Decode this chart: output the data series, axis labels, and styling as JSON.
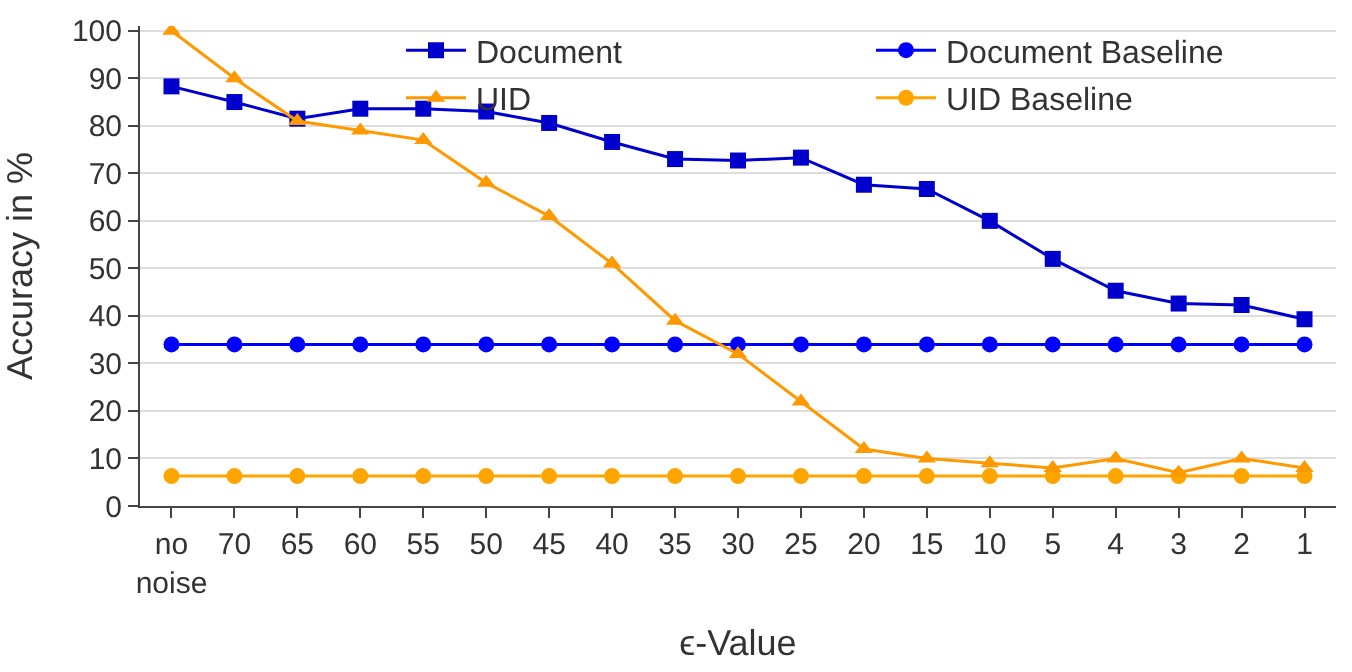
{
  "chart_data": {
    "type": "line",
    "xlabel": "ϵ-Value",
    "ylabel": "Accuracy in %",
    "categories": [
      "no\nnoise",
      "70",
      "65",
      "60",
      "55",
      "50",
      "45",
      "40",
      "35",
      "30",
      "25",
      "20",
      "15",
      "10",
      "5",
      "4",
      "3",
      "2",
      "1"
    ],
    "series": [
      {
        "name": "Document",
        "color": "#0000cc",
        "marker": "square",
        "values": [
          88.3,
          85,
          81.5,
          83.6,
          83.6,
          83,
          80.6,
          76.6,
          73,
          72.7,
          73.3,
          67.6,
          66.7,
          60,
          52,
          45.3,
          42.6,
          42.3,
          39.3
        ]
      },
      {
        "name": "Document Baseline",
        "color": "#0000ff",
        "marker": "circle",
        "values": [
          34,
          34,
          34,
          34,
          34,
          34,
          34,
          34,
          34,
          34,
          34,
          34,
          34,
          34,
          34,
          34,
          34,
          34,
          34
        ]
      },
      {
        "name": "UID",
        "color": "#ff9900",
        "marker": "triangle",
        "values": [
          100,
          90,
          81,
          79,
          77,
          68,
          61,
          51,
          39,
          32,
          22,
          12,
          10,
          9,
          8,
          10,
          7,
          10,
          8
        ]
      },
      {
        "name": "UID Baseline",
        "color": "#ffa500",
        "marker": "circle",
        "values": [
          6.3,
          6.3,
          6.3,
          6.3,
          6.3,
          6.3,
          6.3,
          6.3,
          6.3,
          6.3,
          6.3,
          6.3,
          6.3,
          6.3,
          6.3,
          6.3,
          6.3,
          6.3,
          6.3
        ]
      }
    ],
    "ylim": [
      0,
      101
    ],
    "yticks": [
      0,
      10,
      20,
      30,
      40,
      50,
      60,
      70,
      80,
      90,
      100
    ],
    "grid": "y",
    "legend": "top right",
    "line_style": "solid"
  }
}
